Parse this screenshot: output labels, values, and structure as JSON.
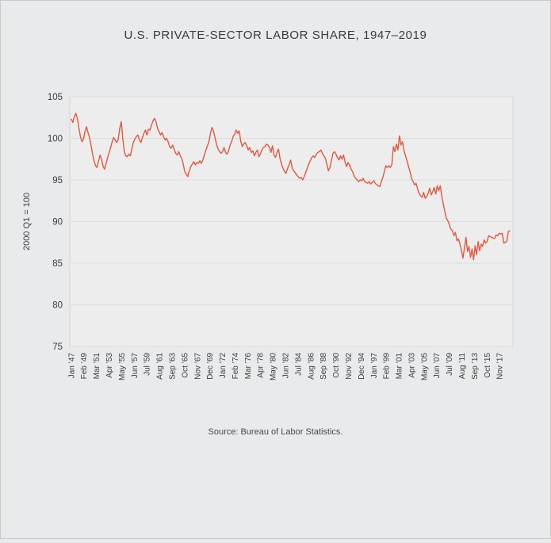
{
  "page": {
    "title": "U.S. PRIVATE-SECTOR LABOR SHARE, 1947–2019",
    "source_note": "Source: Bureau of Labor Statistics."
  },
  "colors": {
    "line": "#e2593e",
    "page_background": "#e9eaeb",
    "plot_background": "#ededee",
    "plot_border": "#d3d4d5",
    "gridline": "#dcdddd",
    "text": "#3d3d3d"
  },
  "chart_data": {
    "type": "line",
    "title": "U.S. PRIVATE-SECTOR LABOR SHARE, 1947–2019",
    "xlabel": "",
    "ylabel": "2000 Q1 = 100",
    "ylim": [
      75,
      105
    ],
    "y_ticks": [
      105,
      100,
      95,
      90,
      85,
      80,
      75
    ],
    "grid": "horizontal",
    "legend_position": "none",
    "source": "Source: Bureau of Labor Statistics.",
    "x_start_year": 1947.0,
    "x_end_year": 2019.75,
    "frequency": "quarterly",
    "x_tick_labels": [
      "Jan ’47",
      "Feb ’49",
      "Mar ’51",
      "Apr ’53",
      "May ’55",
      "Jun ’57",
      "Jul ’59",
      "Aug ’61",
      "Sep ’63",
      "Oct ’65",
      "Nov ’67",
      "Dec ’69",
      "Jan ’72",
      "Feb ’74",
      "Mar ’76",
      "Apr ’78",
      "May ’80",
      "Jun ’82",
      "Jul ’84",
      "Aug ’86",
      "Sep ’88",
      "Oct ’90",
      "Nov ’92",
      "Dec ’94",
      "Jan ’97",
      "Feb ’99",
      "Mar ’01",
      "Apr ’03",
      "May ’05",
      "Jun ’07",
      "Jul ’09",
      "Aug ’11",
      "Sep ’13",
      "Oct ’15",
      "Nov ’17"
    ],
    "x_tick_interval_months": 25,
    "series": [
      {
        "name": "U.S. private-sector labor share (2000 Q1 = 100)",
        "start": "1947 Q1",
        "values": [
          102.3,
          101.9,
          102.6,
          103.0,
          102.4,
          101.2,
          100.2,
          99.6,
          99.9,
          100.8,
          101.4,
          100.7,
          100.1,
          99.2,
          98.1,
          97.3,
          96.7,
          96.5,
          97.3,
          98.0,
          97.5,
          96.6,
          96.3,
          97.0,
          97.7,
          98.3,
          98.9,
          99.6,
          100.1,
          99.8,
          99.5,
          99.9,
          101.2,
          102.0,
          100.0,
          98.4,
          97.9,
          97.8,
          98.1,
          97.9,
          98.7,
          99.5,
          99.9,
          100.2,
          100.4,
          99.8,
          99.5,
          100.1,
          100.6,
          101.0,
          100.4,
          101.1,
          101.0,
          101.6,
          102.1,
          102.4,
          102.0,
          101.2,
          100.8,
          100.4,
          100.7,
          100.2,
          99.8,
          100.0,
          99.6,
          99.0,
          98.8,
          99.2,
          98.7,
          98.2,
          98.0,
          98.4,
          97.9,
          97.6,
          96.9,
          96.0,
          95.7,
          95.4,
          96.1,
          96.6,
          96.9,
          97.2,
          96.8,
          97.1,
          97.0,
          97.3,
          97.0,
          97.4,
          98.0,
          98.6,
          99.1,
          99.6,
          100.6,
          101.3,
          100.9,
          100.1,
          99.3,
          98.7,
          98.4,
          98.2,
          98.4,
          98.9,
          98.3,
          98.1,
          98.5,
          99.2,
          99.6,
          100.2,
          100.5,
          101.0,
          100.6,
          100.9,
          99.7,
          99.0,
          99.3,
          99.5,
          99.1,
          98.6,
          98.9,
          98.3,
          98.5,
          97.9,
          98.3,
          98.6,
          97.8,
          98.1,
          98.6,
          98.9,
          99.0,
          99.3,
          99.2,
          98.9,
          98.3,
          99.1,
          98.0,
          97.7,
          98.3,
          98.7,
          97.6,
          96.9,
          96.4,
          96.0,
          95.8,
          96.4,
          96.8,
          97.4,
          96.5,
          96.1,
          95.9,
          95.6,
          95.4,
          95.2,
          95.3,
          95.0,
          95.4,
          95.9,
          96.4,
          96.9,
          97.3,
          97.7,
          97.9,
          97.7,
          98.1,
          98.3,
          98.4,
          98.6,
          98.2,
          97.9,
          97.6,
          96.9,
          96.1,
          96.5,
          97.3,
          98.2,
          98.4,
          98.1,
          97.7,
          97.4,
          97.9,
          97.5,
          98.0,
          97.2,
          96.6,
          97.1,
          96.8,
          96.3,
          96.0,
          95.5,
          95.2,
          95.0,
          94.8,
          95.0,
          94.9,
          95.2,
          94.8,
          94.7,
          94.6,
          94.8,
          94.5,
          94.7,
          94.9,
          94.6,
          94.4,
          94.3,
          94.2,
          94.8,
          95.3,
          96.0,
          96.7,
          96.5,
          96.7,
          96.5,
          96.9,
          99.0,
          98.4,
          99.3,
          98.6,
          100.3,
          99.2,
          99.6,
          98.5,
          97.9,
          97.3,
          96.6,
          96.0,
          95.2,
          94.8,
          94.4,
          94.6,
          93.9,
          93.4,
          93.1,
          92.9,
          93.5,
          92.8,
          93.0,
          93.4,
          94.0,
          93.2,
          93.6,
          94.1,
          93.3,
          94.3,
          93.7,
          94.3,
          93.0,
          92.1,
          91.2,
          90.4,
          90.1,
          89.6,
          89.1,
          88.9,
          88.3,
          88.7,
          87.7,
          87.9,
          87.3,
          86.5,
          85.6,
          86.9,
          88.1,
          86.4,
          87.0,
          85.7,
          86.7,
          85.4,
          87.1,
          86.0,
          87.6,
          86.5,
          87.3,
          87.0,
          87.8,
          87.4,
          87.6,
          88.3,
          88.2,
          88.1,
          88.0,
          88.0,
          88.4,
          88.3,
          88.6,
          88.5,
          88.6,
          87.4,
          87.5,
          87.6,
          88.8,
          88.9
        ]
      }
    ]
  }
}
